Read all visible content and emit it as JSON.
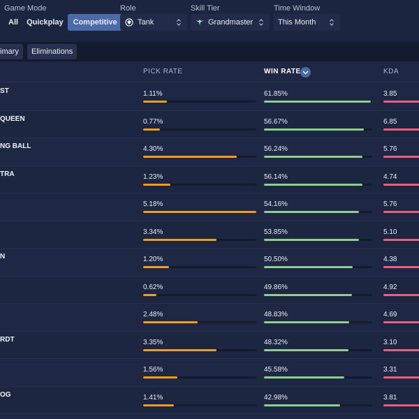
{
  "filters": {
    "game_mode": {
      "label": "Game Mode",
      "options": [
        "All",
        "Quickplay",
        "Competitive"
      ],
      "selected": "Competitive"
    },
    "role": {
      "label": "Role",
      "value": "Tank",
      "icon": "tank-shield-icon"
    },
    "skill_tier": {
      "label": "Skill Tier",
      "value": "Grandmaster",
      "icon": "grandmaster-wings-icon"
    },
    "time_window": {
      "label": "Time Window",
      "value": "This Month"
    }
  },
  "tabs": [
    "imary",
    "Eliminations"
  ],
  "columns": {
    "pick_rate": "PICK RATE",
    "win_rate": "WIN RATE",
    "kda": "KDA",
    "sorted_by": "win_rate"
  },
  "colors": {
    "pick_bar": "#f39c1f",
    "win_bar": "#8fce8c",
    "kda_bar": "#e8607d",
    "accent": "#4b6aa8"
  },
  "rows": [
    {
      "hero": "ST",
      "pick_rate": "1.11%",
      "pick_frac": 0.21,
      "win_rate": "61.85%",
      "win_frac": 0.99,
      "kda": "3.85"
    },
    {
      "hero": "QUEEN",
      "pick_rate": "0.77%",
      "pick_frac": 0.15,
      "win_rate": "56.67%",
      "win_frac": 0.92,
      "kda": "6.85"
    },
    {
      "hero": "NG BALL",
      "pick_rate": "4.30%",
      "pick_frac": 0.83,
      "win_rate": "56.24%",
      "win_frac": 0.91,
      "kda": "5.76"
    },
    {
      "hero": "TRA",
      "pick_rate": "1.23%",
      "pick_frac": 0.24,
      "win_rate": "56.14%",
      "win_frac": 0.91,
      "kda": "4.74"
    },
    {
      "hero": "",
      "pick_rate": "5.18%",
      "pick_frac": 1.0,
      "win_rate": "54.16%",
      "win_frac": 0.88,
      "kda": "5.76"
    },
    {
      "hero": "",
      "pick_rate": "3.34%",
      "pick_frac": 0.65,
      "win_rate": "53.85%",
      "win_frac": 0.88,
      "kda": "5.10"
    },
    {
      "hero": "N",
      "pick_rate": "1.20%",
      "pick_frac": 0.23,
      "win_rate": "50.50%",
      "win_frac": 0.82,
      "kda": "4.38"
    },
    {
      "hero": "",
      "pick_rate": "0.62%",
      "pick_frac": 0.12,
      "win_rate": "49.86%",
      "win_frac": 0.81,
      "kda": "4.92"
    },
    {
      "hero": "",
      "pick_rate": "2.48%",
      "pick_frac": 0.48,
      "win_rate": "48.83%",
      "win_frac": 0.79,
      "kda": "4.69"
    },
    {
      "hero": "RDT",
      "pick_rate": "3.35%",
      "pick_frac": 0.65,
      "win_rate": "48.32%",
      "win_frac": 0.78,
      "kda": "3.10"
    },
    {
      "hero": "",
      "pick_rate": "1.56%",
      "pick_frac": 0.3,
      "win_rate": "45.58%",
      "win_frac": 0.74,
      "kda": "3.31"
    },
    {
      "hero": "OG",
      "pick_rate": "1.41%",
      "pick_frac": 0.27,
      "win_rate": "42.98%",
      "win_frac": 0.7,
      "kda": "3.81"
    }
  ]
}
